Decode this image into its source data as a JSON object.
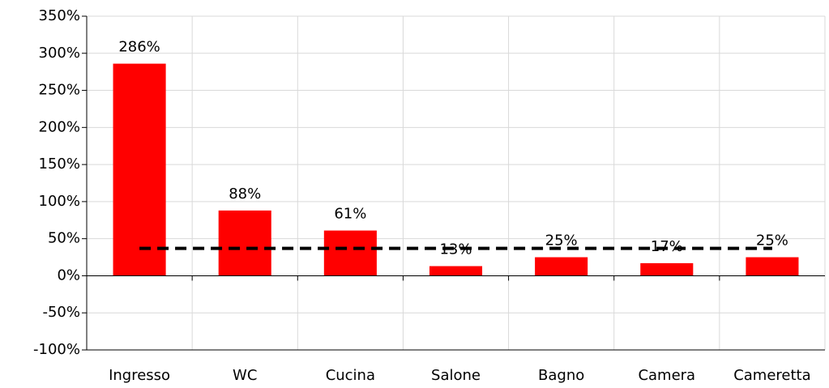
{
  "chart_data": {
    "type": "bar",
    "categories": [
      "Ingresso",
      "WC",
      "Cucina",
      "Salone",
      "Bagno",
      "Camera",
      "Cameretta"
    ],
    "values": [
      286,
      88,
      61,
      13,
      25,
      17,
      25
    ],
    "value_labels": [
      "286%",
      "88%",
      "61%",
      "13%",
      "25%",
      "17%",
      "25%"
    ],
    "color": "#ff0000",
    "reference_line": {
      "values": [
        37,
        37,
        37,
        37,
        37,
        37,
        37
      ],
      "color": "#000000",
      "dashed": true
    },
    "ylim": [
      -100,
      350
    ],
    "yticks": [
      {
        "value": -100,
        "label": "-100%"
      },
      {
        "value": -50,
        "label": "-50%"
      },
      {
        "value": 0,
        "label": "0%"
      },
      {
        "value": 50,
        "label": "50%"
      },
      {
        "value": 100,
        "label": "100%"
      },
      {
        "value": 150,
        "label": "150%"
      },
      {
        "value": 200,
        "label": "200%"
      },
      {
        "value": 250,
        "label": "250%"
      },
      {
        "value": 300,
        "label": "300%"
      },
      {
        "value": 350,
        "label": "350%"
      }
    ],
    "grid": true
  }
}
